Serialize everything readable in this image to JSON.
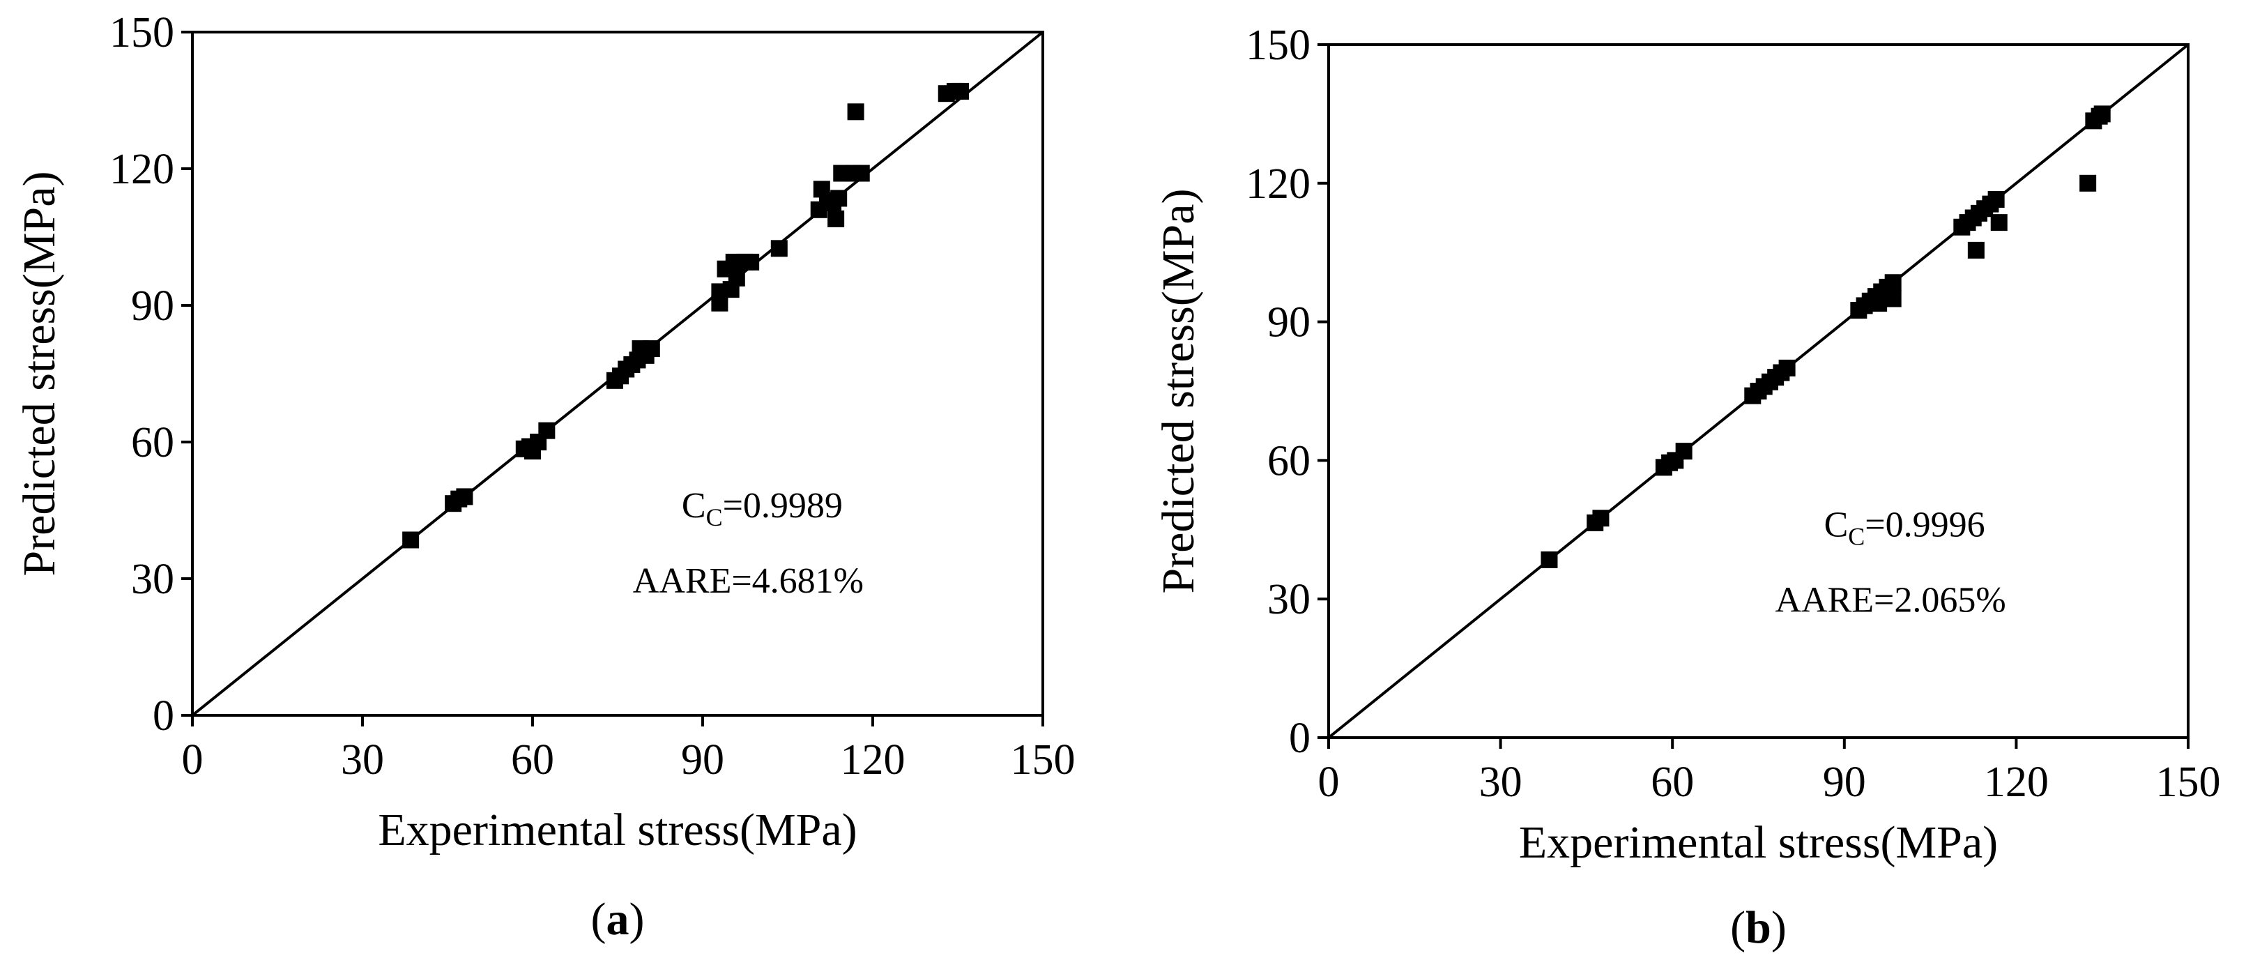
{
  "figure_title": "",
  "chart_data": [
    {
      "type": "scatter",
      "panel_label": "a",
      "title": "",
      "xlabel": "Experimental stress(MPa)",
      "ylabel": "Predicted stress(MPa)",
      "xlim": [
        0,
        150
      ],
      "ylim": [
        0,
        150
      ],
      "xticks": [
        "0",
        "30",
        "60",
        "90",
        "120",
        "150"
      ],
      "yticks": [
        "0",
        "30",
        "60",
        "90",
        "120",
        "150"
      ],
      "reference_line": "y = x",
      "annotation": {
        "cc_label": "C",
        "cc_sub": "C",
        "cc_value": "=0.9989",
        "aare": "AARE=4.681%"
      },
      "points": [
        [
          38.5,
          38.5
        ],
        [
          46,
          46.5
        ],
        [
          47,
          47.5
        ],
        [
          48,
          48
        ],
        [
          58.5,
          58.5
        ],
        [
          59.5,
          59
        ],
        [
          60,
          58
        ],
        [
          61,
          60
        ],
        [
          62.5,
          62.5
        ],
        [
          74.5,
          73.5
        ],
        [
          75.5,
          74.5
        ],
        [
          76.5,
          76
        ],
        [
          77.5,
          77
        ],
        [
          78.5,
          78
        ],
        [
          79,
          80.5
        ],
        [
          80,
          79
        ],
        [
          81,
          80.5
        ],
        [
          93,
          93
        ],
        [
          93,
          90.5
        ],
        [
          94,
          98
        ],
        [
          95,
          93.5
        ],
        [
          95.5,
          99.5
        ],
        [
          96,
          96
        ],
        [
          97.5,
          99.5
        ],
        [
          98.5,
          99.5
        ],
        [
          103.5,
          102.5
        ],
        [
          110.5,
          111
        ],
        [
          111,
          115.5
        ],
        [
          112,
          113
        ],
        [
          113,
          112.5
        ],
        [
          113.5,
          109
        ],
        [
          114,
          113.5
        ],
        [
          114.5,
          119
        ],
        [
          116.5,
          119
        ],
        [
          117,
          132.5
        ],
        [
          118,
          119
        ],
        [
          133,
          136.5
        ],
        [
          134.5,
          137
        ],
        [
          135.5,
          137
        ]
      ]
    },
    {
      "type": "scatter",
      "panel_label": "b",
      "title": "",
      "xlabel": "Experimental stress(MPa)",
      "ylabel": "Predicted stress(MPa)",
      "xlim": [
        0,
        150
      ],
      "ylim": [
        0,
        150
      ],
      "xticks": [
        "0",
        "30",
        "60",
        "90",
        "120",
        "150"
      ],
      "yticks": [
        "0",
        "30",
        "60",
        "90",
        "120",
        "150"
      ],
      "reference_line": "y = x",
      "annotation": {
        "cc_label": "C",
        "cc_sub": "C",
        "cc_value": "=0.9996",
        "aare": "AARE=2.065%"
      },
      "points": [
        [
          38.5,
          38.5
        ],
        [
          46.5,
          46.5
        ],
        [
          47.5,
          47.5
        ],
        [
          58.5,
          58.5
        ],
        [
          59.5,
          59.5
        ],
        [
          60.5,
          60
        ],
        [
          62,
          62
        ],
        [
          74,
          74
        ],
        [
          75,
          75
        ],
        [
          76,
          76
        ],
        [
          77,
          77
        ],
        [
          78,
          78
        ],
        [
          79,
          79
        ],
        [
          80,
          80
        ],
        [
          92.5,
          92.5
        ],
        [
          93.5,
          93.5
        ],
        [
          94.5,
          94.5
        ],
        [
          95.5,
          95.5
        ],
        [
          96.5,
          96.5
        ],
        [
          97.5,
          97.5
        ],
        [
          98.5,
          98.5
        ],
        [
          96,
          94
        ],
        [
          98.5,
          95
        ],
        [
          110.5,
          110.5
        ],
        [
          111.5,
          111.5
        ],
        [
          112.5,
          112.5
        ],
        [
          113.5,
          113.5
        ],
        [
          114.5,
          114.5
        ],
        [
          115.5,
          115.5
        ],
        [
          116.5,
          116.5
        ],
        [
          113,
          105.5
        ],
        [
          117,
          111.5
        ],
        [
          132.5,
          120
        ],
        [
          133.5,
          133.5
        ],
        [
          134.5,
          134.5
        ],
        [
          135,
          135
        ]
      ]
    }
  ]
}
